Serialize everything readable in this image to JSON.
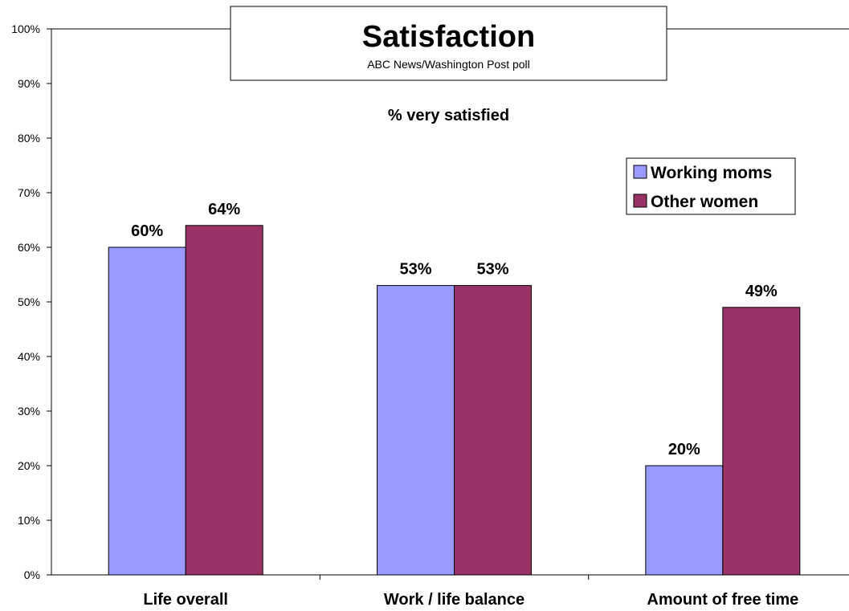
{
  "chart_data": {
    "type": "bar",
    "title": "Satisfaction",
    "source": "ABC News/Washington Post poll",
    "subtitle": "% very satisfied",
    "categories": [
      "Life overall",
      "Work / life balance",
      "Amount of free time"
    ],
    "series": [
      {
        "name": "Working moms",
        "values": [
          60,
          53,
          20
        ],
        "labels": [
          "60%",
          "53%",
          "20%"
        ],
        "color": "#9999ff"
      },
      {
        "name": "Other women",
        "values": [
          64,
          53,
          49
        ],
        "labels": [
          "64%",
          "53%",
          "49%"
        ],
        "color": "#993366"
      }
    ],
    "ylim": [
      0,
      100
    ],
    "y_ticks": [
      {
        "value": 0,
        "label": "0%"
      },
      {
        "value": 10,
        "label": "10%"
      },
      {
        "value": 20,
        "label": "20%"
      },
      {
        "value": 30,
        "label": "30%"
      },
      {
        "value": 40,
        "label": "40%"
      },
      {
        "value": 50,
        "label": "50%"
      },
      {
        "value": 60,
        "label": "60%"
      },
      {
        "value": 70,
        "label": "70%"
      },
      {
        "value": 80,
        "label": "80%"
      },
      {
        "value": 90,
        "label": "90%"
      },
      {
        "value": 100,
        "label": "100%"
      }
    ],
    "grid": false,
    "legend": "top-right"
  }
}
